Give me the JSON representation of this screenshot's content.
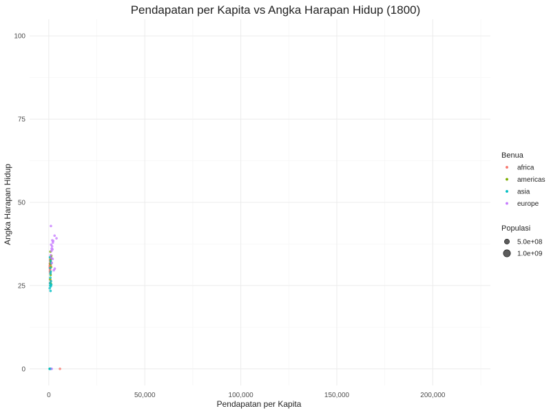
{
  "chart_data": {
    "type": "scatter",
    "title": "Pendapatan per Kapita vs Angka Harapan Hidup (1800)",
    "xlabel": "Pendapatan per Kapita",
    "ylabel": "Angka Harapan Hidup",
    "xlim": [
      -10000,
      230000
    ],
    "ylim": [
      -5,
      105
    ],
    "x_ticks": [
      0,
      50000,
      100000,
      150000,
      200000
    ],
    "x_tick_labels": [
      "0",
      "50,000",
      "100,000",
      "150,000",
      "200,000"
    ],
    "y_ticks": [
      0,
      25,
      50,
      75,
      100
    ],
    "y_tick_labels": [
      "0",
      "25",
      "50",
      "75",
      "100"
    ],
    "grid": true,
    "legend_placement": "right",
    "color_legend": {
      "title": "Benua",
      "items": [
        {
          "label": "africa",
          "color": "#F8766D"
        },
        {
          "label": "americas",
          "color": "#7CAE00"
        },
        {
          "label": "asia",
          "color": "#00BFC4"
        },
        {
          "label": "europe",
          "color": "#C77CFF"
        }
      ]
    },
    "size_legend": {
      "title": "Populasi",
      "items": [
        {
          "label": "5.0e+08",
          "value": 500000000
        },
        {
          "label": "1.0e+09",
          "value": 1000000000
        }
      ]
    },
    "series": [
      {
        "name": "africa",
        "color": "#F8766D",
        "points": [
          {
            "x": 480,
            "y": 30.4
          },
          {
            "x": 600,
            "y": 31.0
          },
          {
            "x": 700,
            "y": 29.8
          },
          {
            "x": 550,
            "y": 31.6
          },
          {
            "x": 820,
            "y": 32.2
          },
          {
            "x": 640,
            "y": 30.0
          },
          {
            "x": 900,
            "y": 33.1
          },
          {
            "x": 750,
            "y": 28.9
          },
          {
            "x": 520,
            "y": 30.9
          },
          {
            "x": 680,
            "y": 32.6
          },
          {
            "x": 1000,
            "y": 31.2
          },
          {
            "x": 580,
            "y": 29.3
          },
          {
            "x": 950,
            "y": 26.5
          },
          {
            "x": 700,
            "y": 25.8
          },
          {
            "x": 800,
            "y": 0
          },
          {
            "x": 5800,
            "y": 0
          }
        ]
      },
      {
        "name": "americas",
        "color": "#7CAE00",
        "points": [
          {
            "x": 900,
            "y": 32.8
          },
          {
            "x": 1100,
            "y": 33.6
          },
          {
            "x": 800,
            "y": 31.5
          },
          {
            "x": 1300,
            "y": 34.0
          },
          {
            "x": 1000,
            "y": 32.1
          },
          {
            "x": 1200,
            "y": 30.6
          },
          {
            "x": 950,
            "y": 28.2
          },
          {
            "x": 1400,
            "y": 33.2
          },
          {
            "x": 700,
            "y": 26.9
          },
          {
            "x": 1050,
            "y": 25.6
          },
          {
            "x": 850,
            "y": 35.2
          },
          {
            "x": 600,
            "y": 0
          }
        ]
      },
      {
        "name": "asia",
        "color": "#00BFC4",
        "points": [
          {
            "x": 500,
            "y": 24.2
          },
          {
            "x": 700,
            "y": 25.0
          },
          {
            "x": 900,
            "y": 23.4
          },
          {
            "x": 650,
            "y": 25.7
          },
          {
            "x": 1100,
            "y": 26.3
          },
          {
            "x": 800,
            "y": 27.4
          },
          {
            "x": 1000,
            "y": 29.2
          },
          {
            "x": 750,
            "y": 30.3
          },
          {
            "x": 1200,
            "y": 31.7
          },
          {
            "x": 950,
            "y": 32.4
          },
          {
            "x": 600,
            "y": 33.5
          },
          {
            "x": 850,
            "y": 28.6
          },
          {
            "x": 1050,
            "y": 24.8
          },
          {
            "x": 1300,
            "y": 25.3
          },
          {
            "x": 400,
            "y": 0
          },
          {
            "x": 1100,
            "y": 0
          },
          {
            "x": 700,
            "y": 0
          }
        ]
      },
      {
        "name": "europe",
        "color": "#C77CFF",
        "points": [
          {
            "x": 1500,
            "y": 36.1
          },
          {
            "x": 1200,
            "y": 37.3
          },
          {
            "x": 1800,
            "y": 38.6
          },
          {
            "x": 2100,
            "y": 37.9
          },
          {
            "x": 1400,
            "y": 35.4
          },
          {
            "x": 1700,
            "y": 36.8
          },
          {
            "x": 1000,
            "y": 34.1
          },
          {
            "x": 2300,
            "y": 38.4
          },
          {
            "x": 1900,
            "y": 35.9
          },
          {
            "x": 1300,
            "y": 33.3
          },
          {
            "x": 3000,
            "y": 40.0
          },
          {
            "x": 4000,
            "y": 39.2
          },
          {
            "x": 2600,
            "y": 29.6
          },
          {
            "x": 3100,
            "y": 30.1
          },
          {
            "x": 1100,
            "y": 42.9
          },
          {
            "x": 1600,
            "y": 31.8
          },
          {
            "x": 2000,
            "y": 33.0
          },
          {
            "x": 1500,
            "y": 0
          }
        ]
      }
    ]
  }
}
